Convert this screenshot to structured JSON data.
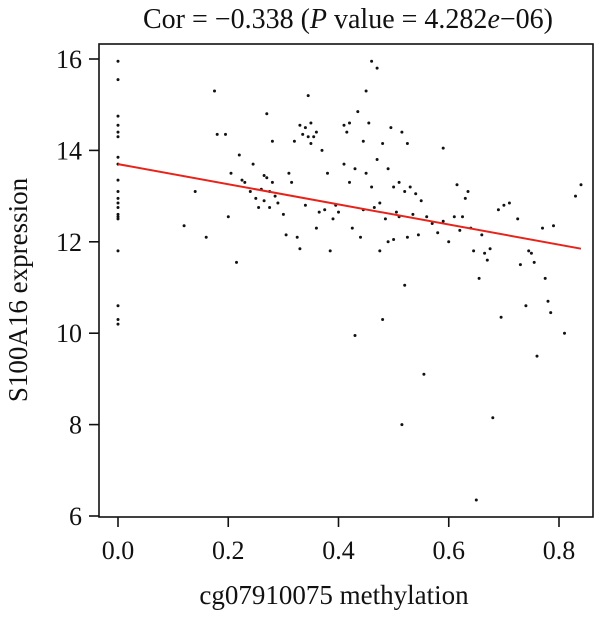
{
  "chart_data": {
    "type": "scatter",
    "title_parts": {
      "prefix": "Cor = −0.338 (",
      "p_italic": "P",
      "middle": " value = 4.282",
      "e_italic": "e",
      "suffix": "−06)"
    },
    "xlabel": "cg07910075 methylation",
    "ylabel": "S100A16 expression",
    "xlim": [
      0.0,
      0.85
    ],
    "ylim": [
      6,
      16.3
    ],
    "xticks": [
      0.0,
      0.2,
      0.4,
      0.6,
      0.8
    ],
    "xtick_labels": [
      "0.0",
      "0.2",
      "0.4",
      "0.6",
      "0.8"
    ],
    "yticks": [
      6,
      8,
      10,
      12,
      14,
      16
    ],
    "ytick_labels": [
      "6",
      "8",
      "10",
      "12",
      "14",
      "16"
    ],
    "grid": false,
    "regression_line": {
      "x": [
        0.0,
        0.84
      ],
      "y": [
        13.7,
        11.85
      ],
      "color": "#e8231a"
    },
    "point_color": "#111111",
    "points": [
      [
        0.0,
        15.95
      ],
      [
        0.0,
        15.55
      ],
      [
        0.0,
        14.75
      ],
      [
        0.0,
        14.55
      ],
      [
        0.0,
        14.4
      ],
      [
        0.0,
        14.3
      ],
      [
        0.0,
        13.85
      ],
      [
        0.0,
        13.7
      ],
      [
        0.0,
        13.35
      ],
      [
        0.0,
        13.1
      ],
      [
        0.0,
        12.95
      ],
      [
        0.0,
        12.85
      ],
      [
        0.0,
        12.75
      ],
      [
        0.0,
        12.6
      ],
      [
        0.0,
        12.55
      ],
      [
        0.0,
        12.5
      ],
      [
        0.0,
        11.8
      ],
      [
        0.0,
        10.6
      ],
      [
        0.0,
        10.3
      ],
      [
        0.0,
        10.2
      ],
      [
        0.12,
        12.35
      ],
      [
        0.14,
        13.1
      ],
      [
        0.16,
        12.1
      ],
      [
        0.175,
        15.3
      ],
      [
        0.18,
        14.35
      ],
      [
        0.195,
        14.35
      ],
      [
        0.2,
        12.55
      ],
      [
        0.205,
        13.5
      ],
      [
        0.215,
        11.55
      ],
      [
        0.22,
        13.9
      ],
      [
        0.225,
        13.35
      ],
      [
        0.23,
        13.3
      ],
      [
        0.24,
        13.1
      ],
      [
        0.245,
        13.7
      ],
      [
        0.25,
        12.95
      ],
      [
        0.255,
        12.75
      ],
      [
        0.26,
        13.15
      ],
      [
        0.265,
        13.45
      ],
      [
        0.265,
        12.9
      ],
      [
        0.27,
        14.8
      ],
      [
        0.27,
        13.4
      ],
      [
        0.275,
        13.1
      ],
      [
        0.275,
        12.75
      ],
      [
        0.28,
        14.2
      ],
      [
        0.28,
        13.3
      ],
      [
        0.285,
        13.0
      ],
      [
        0.29,
        12.85
      ],
      [
        0.3,
        12.6
      ],
      [
        0.305,
        12.15
      ],
      [
        0.31,
        13.5
      ],
      [
        0.315,
        13.3
      ],
      [
        0.32,
        14.2
      ],
      [
        0.325,
        12.1
      ],
      [
        0.33,
        14.55
      ],
      [
        0.33,
        11.85
      ],
      [
        0.335,
        14.35
      ],
      [
        0.34,
        14.5
      ],
      [
        0.34,
        12.8
      ],
      [
        0.345,
        15.2
      ],
      [
        0.345,
        14.3
      ],
      [
        0.35,
        14.6
      ],
      [
        0.35,
        14.15
      ],
      [
        0.355,
        14.3
      ],
      [
        0.36,
        14.4
      ],
      [
        0.36,
        12.3
      ],
      [
        0.365,
        12.65
      ],
      [
        0.37,
        14.0
      ],
      [
        0.375,
        12.7
      ],
      [
        0.38,
        13.5
      ],
      [
        0.385,
        11.8
      ],
      [
        0.39,
        12.5
      ],
      [
        0.395,
        12.8
      ],
      [
        0.4,
        12.65
      ],
      [
        0.41,
        14.55
      ],
      [
        0.41,
        13.7
      ],
      [
        0.415,
        14.4
      ],
      [
        0.42,
        14.6
      ],
      [
        0.42,
        13.3
      ],
      [
        0.425,
        12.3
      ],
      [
        0.43,
        13.6
      ],
      [
        0.43,
        9.95
      ],
      [
        0.435,
        14.85
      ],
      [
        0.44,
        12.1
      ],
      [
        0.445,
        14.2
      ],
      [
        0.445,
        12.7
      ],
      [
        0.45,
        15.3
      ],
      [
        0.45,
        13.5
      ],
      [
        0.455,
        14.6
      ],
      [
        0.46,
        15.95
      ],
      [
        0.46,
        13.2
      ],
      [
        0.465,
        12.75
      ],
      [
        0.47,
        15.8
      ],
      [
        0.47,
        13.8
      ],
      [
        0.475,
        12.85
      ],
      [
        0.475,
        11.8
      ],
      [
        0.48,
        14.15
      ],
      [
        0.48,
        10.3
      ],
      [
        0.485,
        12.5
      ],
      [
        0.49,
        13.6
      ],
      [
        0.49,
        12.0
      ],
      [
        0.495,
        14.5
      ],
      [
        0.5,
        13.2
      ],
      [
        0.5,
        12.05
      ],
      [
        0.505,
        12.65
      ],
      [
        0.51,
        13.3
      ],
      [
        0.51,
        12.55
      ],
      [
        0.515,
        14.4
      ],
      [
        0.515,
        8.0
      ],
      [
        0.52,
        13.1
      ],
      [
        0.52,
        11.05
      ],
      [
        0.525,
        14.15
      ],
      [
        0.525,
        12.1
      ],
      [
        0.53,
        13.2
      ],
      [
        0.535,
        12.6
      ],
      [
        0.54,
        13.05
      ],
      [
        0.545,
        12.15
      ],
      [
        0.55,
        12.9
      ],
      [
        0.555,
        9.1
      ],
      [
        0.56,
        12.55
      ],
      [
        0.57,
        12.4
      ],
      [
        0.58,
        12.2
      ],
      [
        0.59,
        14.05
      ],
      [
        0.59,
        12.45
      ],
      [
        0.6,
        12.0
      ],
      [
        0.61,
        12.55
      ],
      [
        0.615,
        13.25
      ],
      [
        0.62,
        12.25
      ],
      [
        0.625,
        12.55
      ],
      [
        0.63,
        12.95
      ],
      [
        0.635,
        13.1
      ],
      [
        0.64,
        12.3
      ],
      [
        0.645,
        11.8
      ],
      [
        0.65,
        6.35
      ],
      [
        0.655,
        11.2
      ],
      [
        0.66,
        12.15
      ],
      [
        0.665,
        11.75
      ],
      [
        0.67,
        11.6
      ],
      [
        0.675,
        11.85
      ],
      [
        0.68,
        8.15
      ],
      [
        0.69,
        12.7
      ],
      [
        0.695,
        10.35
      ],
      [
        0.7,
        12.8
      ],
      [
        0.71,
        12.85
      ],
      [
        0.725,
        12.5
      ],
      [
        0.73,
        11.5
      ],
      [
        0.74,
        10.6
      ],
      [
        0.745,
        11.8
      ],
      [
        0.75,
        11.75
      ],
      [
        0.755,
        11.55
      ],
      [
        0.76,
        9.5
      ],
      [
        0.77,
        12.3
      ],
      [
        0.775,
        11.2
      ],
      [
        0.78,
        10.7
      ],
      [
        0.785,
        10.45
      ],
      [
        0.79,
        12.35
      ],
      [
        0.81,
        10.0
      ],
      [
        0.83,
        13.0
      ],
      [
        0.84,
        13.25
      ]
    ]
  }
}
